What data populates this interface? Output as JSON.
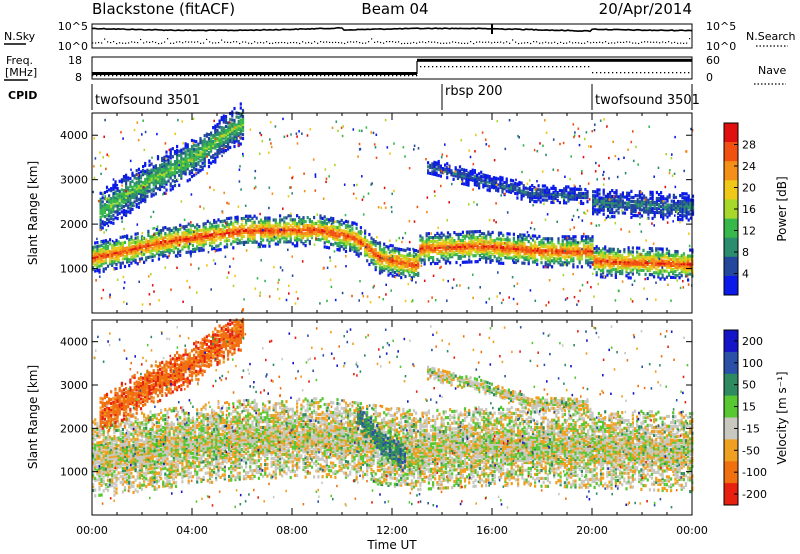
{
  "header": {
    "station": "Blackstone (fitACF)",
    "beam": "Beam 04",
    "date": "20/Apr/2014"
  },
  "noise_panel": {
    "left_label": "N.Sky",
    "right_label": "N.Search",
    "left_ticks": [
      "10^5",
      "10^0"
    ],
    "right_ticks": [
      "10^5",
      "10^0"
    ]
  },
  "freq_panel": {
    "left_label_1": "Freq.",
    "left_label_2": "[MHz]",
    "left_ticks": [
      "18",
      "8"
    ],
    "right_label": "Nave",
    "right_ticks": [
      "60",
      "0"
    ],
    "freq_segments": [
      {
        "start_h": 0.0,
        "end_h": 13.0,
        "freq_mhz": 10.5
      },
      {
        "start_h": 13.0,
        "end_h": 20.0,
        "freq_mhz": 16.5
      },
      {
        "start_h": 20.0,
        "end_h": 24.0,
        "freq_mhz": 16.5
      }
    ]
  },
  "cpid_panel": {
    "label": "CPID",
    "segments": [
      {
        "name": "twofsound 3501",
        "start_h": 0.0,
        "end_h": 13.0
      },
      {
        "name": "rbsp 200",
        "start_h": 13.0,
        "end_h": 20.0
      },
      {
        "name": "twofsound 3501",
        "start_h": 20.0,
        "end_h": 24.0
      }
    ]
  },
  "chart_data": [
    {
      "type": "heatmap",
      "parameter": "power",
      "ylabel": "Slant Range [km]",
      "xlabel": "Time UT",
      "xlim_h": [
        0,
        24
      ],
      "ylim": [
        0,
        4500
      ],
      "y_ticks": [
        1000,
        2000,
        3000,
        4000
      ],
      "colorbar_label": "Power [dB]",
      "colorbar_ticks": [
        "4",
        "8",
        "12",
        "16",
        "20",
        "24",
        "28"
      ],
      "colorbar_range": [
        0,
        32
      ],
      "colorbar_colors": [
        "#0b1ae8",
        "#24479e",
        "#2c8c6e",
        "#38b84a",
        "#a8d82a",
        "#f0c818",
        "#f49018",
        "#f05010",
        "#e01010"
      ],
      "bands": [
        {
          "label": "main E/F region band",
          "points": [
            [
              0,
              1250
            ],
            [
              3,
              1620
            ],
            [
              6,
              1860
            ],
            [
              9,
              1880
            ],
            [
              10.5,
              1700
            ],
            [
              11.5,
              1250
            ],
            [
              13.0,
              1080
            ],
            [
              13.05,
              1460
            ],
            [
              15.5,
              1520
            ],
            [
              18,
              1400
            ],
            [
              20,
              1400
            ],
            [
              20.05,
              1180
            ],
            [
              24,
              1100
            ]
          ],
          "width_km": 350,
          "peak_db": 28
        },
        {
          "label": "upper diagonal band",
          "points": [
            [
              0.3,
              2300
            ],
            [
              2,
              2900
            ],
            [
              4,
              3500
            ],
            [
              6,
              4300
            ]
          ],
          "width_km": 450,
          "peak_db": 14
        },
        {
          "label": "far range band",
          "points": [
            [
              13.4,
              3300
            ],
            [
              15.5,
              3000
            ],
            [
              17.5,
              2700
            ],
            [
              19.8,
              2650
            ]
          ],
          "width_km": 180,
          "peak_db": 6
        },
        {
          "label": "late far band",
          "points": [
            [
              20,
              2500
            ],
            [
              24,
              2400
            ]
          ],
          "width_km": 300,
          "peak_db": 8
        }
      ]
    },
    {
      "type": "heatmap",
      "parameter": "velocity",
      "ylabel": "Slant Range [km]",
      "xlabel": "Time UT",
      "xlim_h": [
        0,
        24
      ],
      "ylim": [
        0,
        4500
      ],
      "y_ticks": [
        1000,
        2000,
        3000,
        4000
      ],
      "x_ticks": [
        "00:00",
        "04:00",
        "08:00",
        "12:00",
        "16:00",
        "20:00",
        "00:00"
      ],
      "colorbar_label": "Velocity [m s⁻¹]",
      "colorbar_ticks": [
        "200",
        "100",
        "50",
        "15",
        "-15",
        "-50",
        "-100",
        "-200"
      ],
      "colorbar_colors": [
        "#1414c8",
        "#2a50a8",
        "#2e8a60",
        "#58c832",
        "#c8c8c0",
        "#f0a020",
        "#f07010",
        "#e82010"
      ],
      "bands": [
        {
          "label": "ground scatter",
          "points": [
            [
              0,
              1300
            ],
            [
              3,
              1550
            ],
            [
              6,
              1750
            ],
            [
              9.5,
              1800
            ],
            [
              10.5,
              1700
            ],
            [
              13.0,
              1500
            ],
            [
              16,
              1600
            ],
            [
              20,
              1550
            ],
            [
              24,
              1450
            ]
          ],
          "width_km": 900,
          "velocity_ms": 0
        },
        {
          "label": "upper diagonal band",
          "points": [
            [
              0.3,
              2300
            ],
            [
              2,
              2900
            ],
            [
              4,
              3500
            ],
            [
              6,
              4300
            ]
          ],
          "width_km": 450,
          "velocity_ms": -80
        },
        {
          "label": "descending green band",
          "points": [
            [
              10.6,
              2300
            ],
            [
              11.5,
              1700
            ],
            [
              12.5,
              1300
            ]
          ],
          "width_km": 300,
          "velocity_ms": 60
        },
        {
          "label": "far range band",
          "points": [
            [
              13.4,
              3300
            ],
            [
              15.5,
              3000
            ],
            [
              17.5,
              2600
            ],
            [
              19.8,
              2550
            ]
          ],
          "width_km": 150,
          "velocity_ms": 0
        }
      ]
    }
  ]
}
